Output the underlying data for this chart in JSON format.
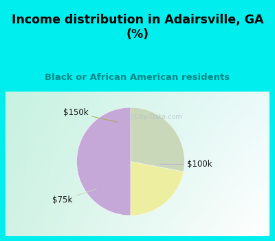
{
  "title": "Income distribution in Adairsville, GA\n(%)",
  "subtitle": "Black or African American residents",
  "slices": [
    {
      "label": "$100k",
      "value": 50,
      "color": "#C5A8D8"
    },
    {
      "label": "$150k",
      "value": 22,
      "color": "#EEEEA0"
    },
    {
      "label": "$75k",
      "value": 28,
      "color": "#C8D8B8"
    }
  ],
  "startangle": 90,
  "bg_color": "#00EEEE",
  "panel_grad_tl": [
    0.78,
    0.95,
    0.88
  ],
  "panel_grad_tr": [
    0.92,
    0.98,
    0.98
  ],
  "panel_grad_br": [
    1.0,
    1.0,
    1.0
  ],
  "title_color": "#000000",
  "subtitle_color": "#008888",
  "label_color": "#111111",
  "watermark": "City-Data.com",
  "watermark_color": "#AABBCC"
}
